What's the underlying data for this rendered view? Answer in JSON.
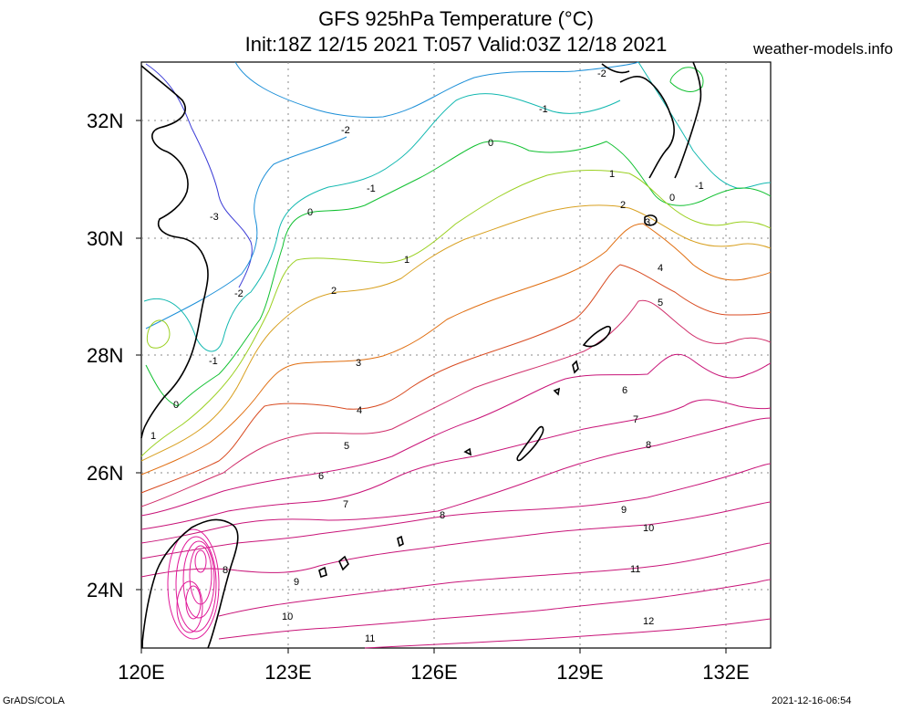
{
  "title_line1": "GFS 925hPa Temperature (°C)",
  "title_line2": "Init:18Z 12/15 2021 T:057 Valid:03Z 12/18 2021",
  "website": "weather-models.info",
  "footer_left": "GrADS/COLA",
  "footer_right": "2021-12-16-06:54",
  "lat_labels": [
    "32N",
    "30N",
    "28N",
    "26N",
    "24N"
  ],
  "lon_labels": [
    "120E",
    "123E",
    "126E",
    "129E",
    "132E"
  ],
  "contour_labels": [
    "-2",
    "-1",
    "0",
    "1",
    "2",
    "3",
    "4",
    "5",
    "6",
    "7",
    "8",
    "9",
    "10",
    "11",
    "12",
    "-3"
  ],
  "colors": {
    "m3": "#3b3bd6",
    "m2": "#1e90d8",
    "m1": "#12b8b0",
    "c0": "#10c030",
    "c1": "#9ad020",
    "c2": "#d8a020",
    "c3": "#e06e10",
    "c4": "#d84a20",
    "c5": "#d02e6a",
    "warm": "#c81478",
    "hot": "#e01898",
    "coast": "#000000"
  }
}
